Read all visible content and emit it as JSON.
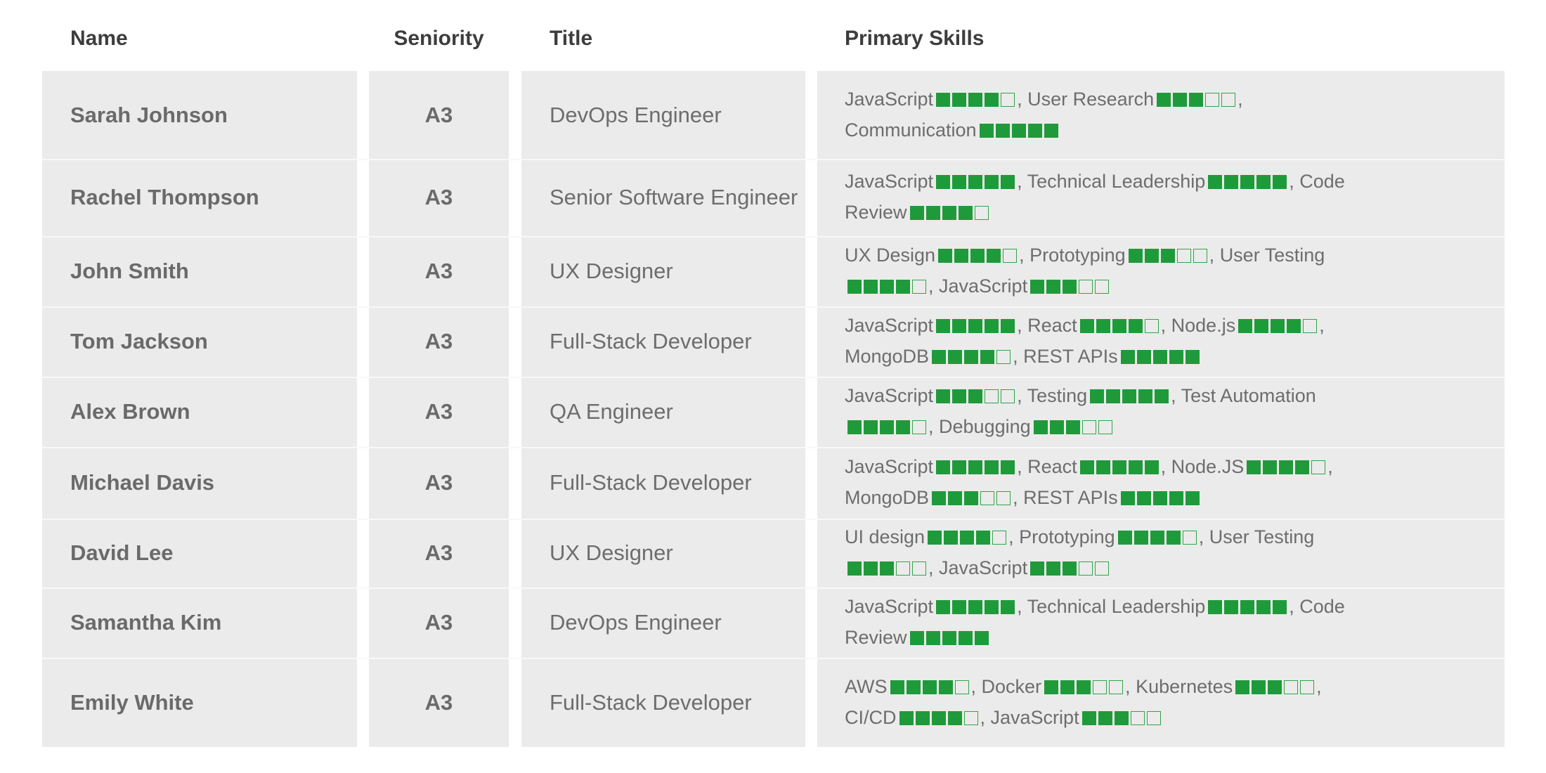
{
  "headers": {
    "name": "Name",
    "seniority": "Seniority",
    "title": "Title",
    "skills": "Primary Skills"
  },
  "colors": {
    "rating_filled": "#1f9a3a",
    "rating_empty_border": "#2fa54a",
    "column_background": "#ebebeb",
    "header_text": "#3d3d3d",
    "body_text": "#6d6d6d"
  },
  "rating_max": 5,
  "rows": [
    {
      "name": "Sarah Johnson",
      "seniority": "A3",
      "title": "DevOps Engineer",
      "skills": [
        {
          "skill": "JavaScript",
          "rating": 4
        },
        {
          "skill": "User Research",
          "rating": 3
        },
        {
          "skill": "Communication",
          "rating": 5
        }
      ]
    },
    {
      "name": "Rachel Thompson",
      "seniority": "A3",
      "title": "Senior Software Engineer",
      "skills": [
        {
          "skill": "JavaScript",
          "rating": 5
        },
        {
          "skill": "Technical Leadership",
          "rating": 5
        },
        {
          "skill": "Code Review",
          "rating": 4
        }
      ]
    },
    {
      "name": "John Smith",
      "seniority": "A3",
      "title": "UX Designer",
      "skills": [
        {
          "skill": "UX Design",
          "rating": 4
        },
        {
          "skill": "Prototyping",
          "rating": 3
        },
        {
          "skill": "User Testing",
          "rating": 4
        },
        {
          "skill": "JavaScript",
          "rating": 3
        }
      ]
    },
    {
      "name": "Tom Jackson",
      "seniority": "A3",
      "title": "Full-Stack Developer",
      "skills": [
        {
          "skill": "JavaScript",
          "rating": 5
        },
        {
          "skill": "React",
          "rating": 4
        },
        {
          "skill": "Node.js",
          "rating": 4
        },
        {
          "skill": "MongoDB",
          "rating": 4
        },
        {
          "skill": "REST APIs",
          "rating": 5
        }
      ]
    },
    {
      "name": "Alex Brown",
      "seniority": "A3",
      "title": "QA Engineer",
      "skills": [
        {
          "skill": "JavaScript",
          "rating": 3
        },
        {
          "skill": "Testing",
          "rating": 5
        },
        {
          "skill": "Test Automation",
          "rating": 4
        },
        {
          "skill": "Debugging",
          "rating": 3
        }
      ]
    },
    {
      "name": "Michael Davis",
      "seniority": "A3",
      "title": "Full-Stack Developer",
      "skills": [
        {
          "skill": "JavaScript",
          "rating": 5
        },
        {
          "skill": "React",
          "rating": 5
        },
        {
          "skill": "Node.JS",
          "rating": 4
        },
        {
          "skill": "MongoDB",
          "rating": 3
        },
        {
          "skill": "REST APIs",
          "rating": 5
        }
      ]
    },
    {
      "name": "David Lee",
      "seniority": "A3",
      "title": "UX Designer",
      "skills": [
        {
          "skill": "UI design",
          "rating": 4
        },
        {
          "skill": "Prototyping",
          "rating": 4
        },
        {
          "skill": "User Testing",
          "rating": 3
        },
        {
          "skill": "JavaScript",
          "rating": 3
        }
      ]
    },
    {
      "name": "Samantha Kim",
      "seniority": "A3",
      "title": "DevOps Engineer",
      "skills": [
        {
          "skill": "JavaScript",
          "rating": 5
        },
        {
          "skill": "Technical Leadership",
          "rating": 5
        },
        {
          "skill": "Code Review",
          "rating": 5
        }
      ]
    },
    {
      "name": "Emily White",
      "seniority": "A3",
      "title": "Full-Stack Developer",
      "skills": [
        {
          "skill": "AWS",
          "rating": 4
        },
        {
          "skill": "Docker",
          "rating": 3
        },
        {
          "skill": "Kubernetes",
          "rating": 3
        },
        {
          "skill": "CI/CD",
          "rating": 4
        },
        {
          "skill": "JavaScript",
          "rating": 3
        }
      ]
    }
  ]
}
